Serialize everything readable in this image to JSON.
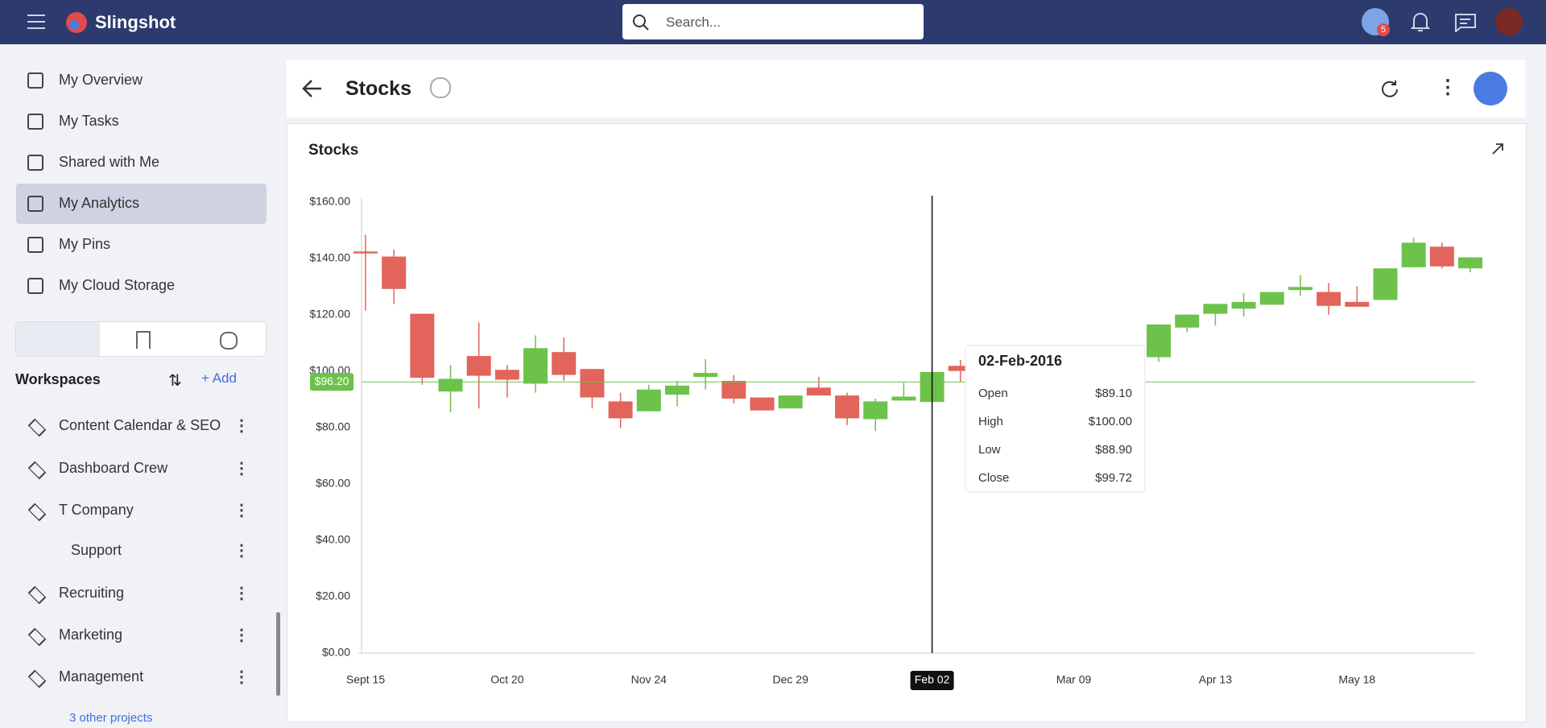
{
  "header": {
    "app": "Slingshot",
    "search_placeholder": "Search...",
    "badge": "5"
  },
  "sidebar": {
    "nav": [
      "My Overview",
      "My Tasks",
      "Shared with Me",
      "My Analytics",
      "My Pins",
      "My Cloud Storage"
    ],
    "workspaces_title": "Workspaces",
    "add_label": "Add",
    "workspaces": [
      "Content Calendar & SEO",
      "Dashboard Crew",
      "T Company",
      "Support",
      "Recruiting",
      "Marketing",
      "Management"
    ],
    "more": "3 other projects"
  },
  "page": {
    "title": "Stocks"
  },
  "chart_data": {
    "type": "candlestick",
    "title": "Stocks",
    "categories": [
      "Sept 15",
      null,
      null,
      null,
      null,
      "Oct 20",
      null,
      null,
      null,
      null,
      "Nov 24",
      null,
      null,
      null,
      null,
      "Dec 29",
      null,
      null,
      null,
      null,
      "Feb 02",
      null,
      null,
      null,
      null,
      "Mar 09",
      null,
      null,
      null,
      null,
      "Apr 13",
      null,
      null,
      null,
      null,
      "May 18",
      null,
      null,
      null,
      null
    ],
    "open": [
      142.5,
      140.7,
      120.4,
      92.8,
      105.4,
      100.5,
      95.6,
      106.8,
      100.8,
      89.3,
      85.8,
      91.7,
      98.0,
      96.6,
      90.7,
      86.8,
      94.2,
      91.4,
      83.0,
      89.6,
      89.1,
      101.9,
      null,
      null,
      null,
      null,
      null,
      null,
      105.0,
      115.5,
      120.4,
      122.2,
      123.6,
      128.8,
      128.1,
      124.6,
      125.3,
      136.9,
      144.2,
      136.5
    ],
    "high": [
      148.4,
      143.2,
      120.4,
      102.2,
      117.3,
      102.2,
      112.7,
      112.0,
      100.8,
      92.4,
      95.2,
      96.6,
      104.3,
      98.7,
      90.7,
      91.4,
      98.0,
      92.4,
      90.3,
      95.9,
      100,
      104.0,
      null,
      null,
      null,
      null,
      null,
      null,
      116.6,
      120.1,
      123.9,
      127.8,
      128.1,
      134.1,
      131.3,
      130.2,
      136.5,
      147.4,
      145.6,
      140.4
    ],
    "low": [
      121.5,
      123.9,
      95.2,
      85.4,
      86.8,
      90.7,
      92.4,
      96.6,
      86.8,
      79.8,
      85.8,
      87.5,
      93.5,
      88.6,
      86.1,
      86.8,
      91.4,
      80.9,
      78.8,
      89.6,
      88.9,
      96.3,
      null,
      null,
      null,
      null,
      null,
      null,
      103.3,
      113.8,
      116.2,
      119.4,
      123.6,
      126.7,
      120.1,
      122.9,
      125.3,
      136.9,
      136.5,
      135.1
    ],
    "close": [
      141.8,
      129.2,
      97.7,
      97.3,
      98.4,
      97.0,
      108.2,
      98.7,
      90.7,
      83.3,
      93.5,
      94.9,
      99.4,
      90.3,
      86.1,
      91.4,
      91.4,
      83.3,
      89.3,
      91.0,
      99.72,
      100.1,
      null,
      null,
      null,
      null,
      null,
      null,
      116.6,
      120.1,
      123.9,
      124.6,
      128.1,
      129.9,
      123.2,
      122.9,
      136.5,
      145.6,
      137.2,
      140.4
    ],
    "up_color": "#6cc24a",
    "down_color": "#e2645a",
    "ylim": [
      0,
      160
    ],
    "yticks": [
      {
        "value": 0,
        "label": "$0.00"
      },
      {
        "value": 20,
        "label": "$20.00"
      },
      {
        "value": 40,
        "label": "$40.00"
      },
      {
        "value": 60,
        "label": "$60.00"
      },
      {
        "value": 80,
        "label": "$80.00"
      },
      {
        "value": 100,
        "label": "$100.00"
      },
      {
        "value": 120,
        "label": "$120.00"
      },
      {
        "value": 140,
        "label": "$140.00"
      },
      {
        "value": 160,
        "label": "$160.00"
      }
    ],
    "reference_line": {
      "value": 96.2,
      "label": "$96.20"
    },
    "crosshair": 20,
    "tooltip": {
      "title": "02-Feb-2016",
      "items": [
        {
          "label": "Open",
          "value": "$89.10"
        },
        {
          "label": "High",
          "value": "$100.00"
        },
        {
          "label": "Low",
          "value": "$88.90"
        },
        {
          "label": "Close",
          "value": "$99.72"
        }
      ]
    }
  }
}
